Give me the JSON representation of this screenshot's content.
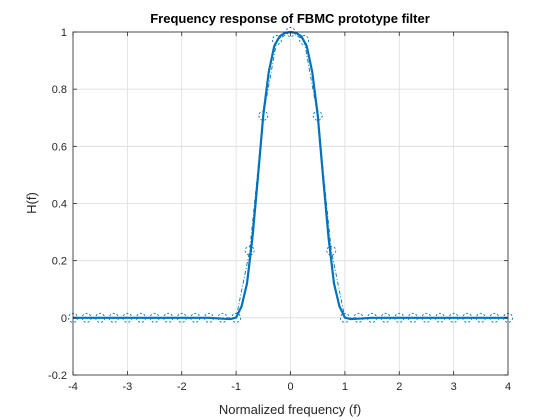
{
  "chart_data": {
    "type": "line",
    "title": "Frequency response of FBMC prototype filter",
    "xlabel": "Normalized frequency (f)",
    "ylabel": "H(f)",
    "xlim": [
      -4,
      4
    ],
    "ylim": [
      -0.2,
      1
    ],
    "xticks": [
      -4,
      -3,
      -2,
      -1,
      0,
      1,
      2,
      3,
      4
    ],
    "xtick_labels": [
      "-4",
      "-3",
      "-2",
      "-1",
      "0",
      "1",
      "2",
      "3",
      "4"
    ],
    "yticks": [
      -0.2,
      0,
      0.2,
      0.4,
      0.6,
      0.8,
      1
    ],
    "ytick_labels": [
      "-0.2",
      "0",
      "0.2",
      "0.4",
      "0.6",
      "0.8",
      "1"
    ],
    "grid": true,
    "series": [
      {
        "style": "solid line",
        "color": "#0072BD",
        "x": [
          -4,
          -3.5,
          -3,
          -2.5,
          -2,
          -1.5,
          -1.25,
          -1.1,
          -1.0,
          -0.9,
          -0.8,
          -0.7,
          -0.6,
          -0.5,
          -0.4,
          -0.3,
          -0.2,
          -0.1,
          0,
          0.1,
          0.2,
          0.3,
          0.4,
          0.5,
          0.6,
          0.7,
          0.8,
          0.9,
          1.0,
          1.1,
          1.25,
          1.5,
          2,
          2.5,
          3,
          3.5,
          4
        ],
        "y": [
          0,
          0,
          0,
          0,
          0,
          0,
          -0.003,
          -0.004,
          0.001,
          0.04,
          0.12,
          0.28,
          0.49,
          0.71,
          0.86,
          0.95,
          0.985,
          0.997,
          1.0,
          0.997,
          0.985,
          0.95,
          0.86,
          0.71,
          0.49,
          0.28,
          0.12,
          0.04,
          0.001,
          -0.004,
          -0.003,
          0,
          0,
          0,
          0,
          0,
          0
        ]
      },
      {
        "style": "dash-dot circles",
        "color": "#0072BD",
        "x": [
          -4,
          -3.75,
          -3.5,
          -3.25,
          -3,
          -2.75,
          -2.5,
          -2.25,
          -2,
          -1.75,
          -1.5,
          -1.25,
          -1,
          -0.75,
          -0.5,
          -0.25,
          0,
          0.25,
          0.5,
          0.75,
          1,
          1.25,
          1.5,
          1.75,
          2,
          2.25,
          2.5,
          2.75,
          3,
          3.25,
          3.5,
          3.75,
          4
        ],
        "y": [
          0,
          0,
          0,
          0,
          0,
          0,
          0,
          0,
          0,
          0,
          0,
          0,
          0,
          0.235,
          0.707,
          0.972,
          1.0,
          0.972,
          0.707,
          0.235,
          0,
          0,
          0,
          0,
          0,
          0,
          0,
          0,
          0,
          0,
          0,
          0,
          0
        ]
      }
    ]
  }
}
